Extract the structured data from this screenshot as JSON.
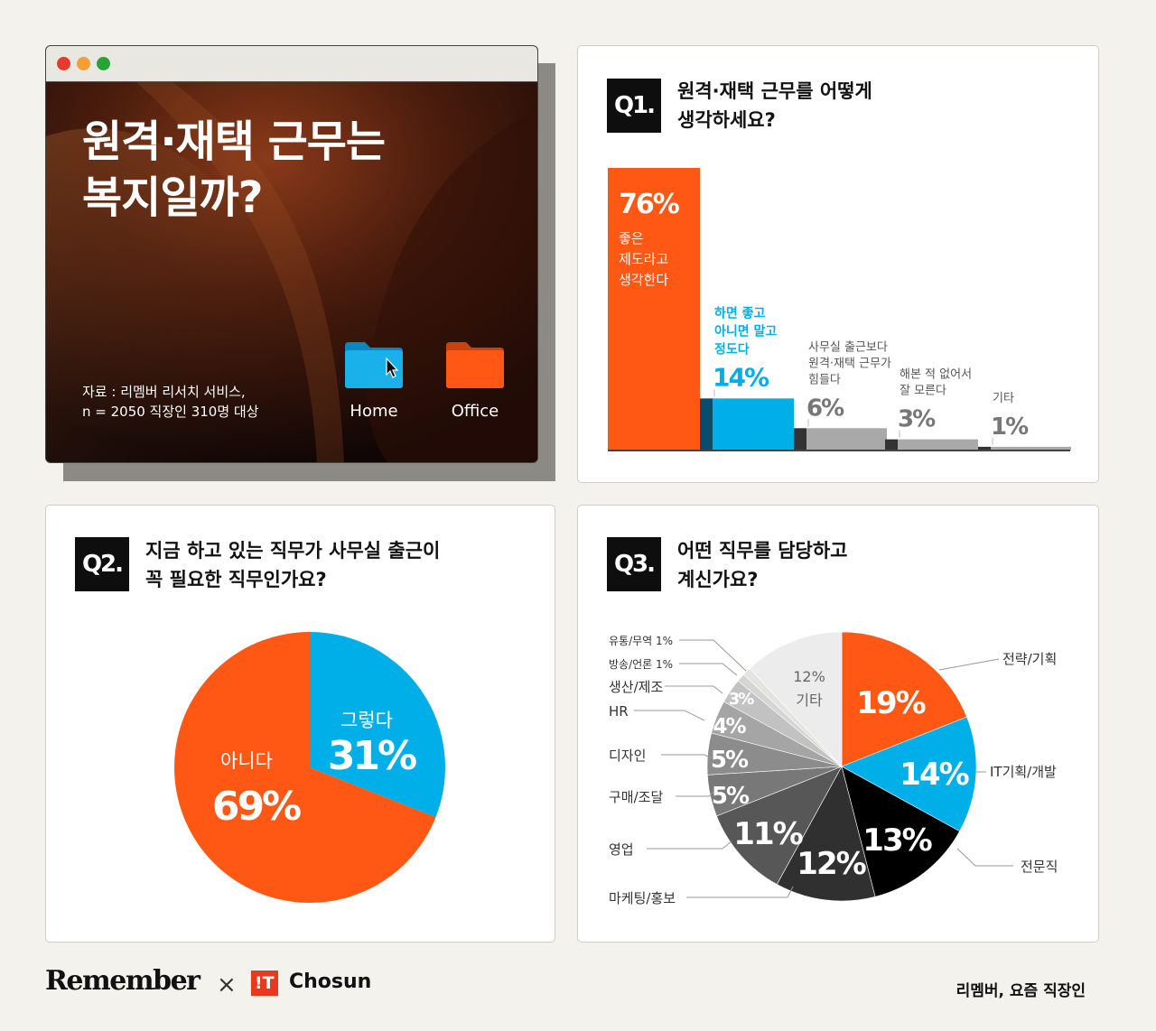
{
  "colors": {
    "orange": "#ff5714",
    "blue": "#00aee8",
    "black": "#0e0e0e",
    "grey": "#a9a9a9"
  },
  "window": {
    "title_line1": "원격·재택 근무는",
    "title_line2": "복지일까?",
    "source_line1": "자료 : 리멤버 리서치 서비스,",
    "source_line2": "n = 2050 직장인 310명 대상",
    "folders": [
      {
        "label": "Home",
        "icon": "folder-icon"
      },
      {
        "label": "Office",
        "icon": "folder-icon"
      }
    ]
  },
  "q1": {
    "badge": "Q1.",
    "title_line1": "원격·재택 근무를 어떻게",
    "title_line2": "생각하세요?"
  },
  "q2": {
    "badge": "Q2.",
    "title_line1": "지금 하고 있는 직무가 사무실 출근이",
    "title_line2": "꼭 필요한 직무인가요?"
  },
  "q3": {
    "badge": "Q3.",
    "title_line1": "어떤 직무를 담당하고",
    "title_line2": "계신가요?"
  },
  "footer": {
    "brand": "Remember",
    "times": "×",
    "it_badge": "!T",
    "partner": "Chosun",
    "right_text": "리멤버, 요즘 직장인"
  },
  "chart_data": [
    {
      "type": "bar",
      "unit": "%",
      "categories": [
        [
          "좋은",
          "제도라고",
          "생각한다"
        ],
        [
          "하면 좋고",
          "아니면 말고",
          "정도다"
        ],
        [
          "사무실 출근보다",
          "원격·재택 근무가",
          "힘들다"
        ],
        [
          "해본 적 없어서",
          "잘 모른다"
        ],
        [
          "기타"
        ]
      ],
      "values": [
        76,
        14,
        6,
        3,
        1
      ],
      "value_labels": [
        "76%",
        "14%",
        "6%",
        "3%",
        "1%"
      ],
      "colors": [
        "#ff5714",
        "#00aee8",
        "#a9a9a9",
        "#a9a9a9",
        "#a9a9a9"
      ]
    },
    {
      "type": "pie",
      "slices": [
        {
          "label": "그렇다",
          "value": 31,
          "value_label": "31%",
          "color": "#00aee8"
        },
        {
          "label": "아니다",
          "value": 69,
          "value_label": "69%",
          "color": "#ff5714"
        }
      ]
    },
    {
      "type": "pie",
      "slices": [
        {
          "label": "전략/기획",
          "value": 19,
          "value_label": "19%",
          "color": "#ff5714"
        },
        {
          "label": "IT기획/개발",
          "value": 14,
          "value_label": "14%",
          "color": "#00aee8"
        },
        {
          "label": "전문직",
          "value": 13,
          "value_label": "13%",
          "color": "#000000"
        },
        {
          "label": "마케팅/홍보",
          "value": 12,
          "value_label": "12%",
          "color": "#303030"
        },
        {
          "label": "영업",
          "value": 11,
          "value_label": "11%",
          "color": "#575757"
        },
        {
          "label": "구매/조달",
          "value": 5,
          "value_label": "5%",
          "color": "#787878"
        },
        {
          "label": "디자인",
          "value": 5,
          "value_label": "5%",
          "color": "#8c8c8c"
        },
        {
          "label": "HR",
          "value": 4,
          "value_label": "4%",
          "color": "#a5a5a5"
        },
        {
          "label": "생산/제조",
          "value": 3,
          "value_label": "3%",
          "color": "#c2c2c2"
        },
        {
          "label": "방송/언론 1%",
          "value": 1,
          "value_label": "",
          "color": "#d5d5d5"
        },
        {
          "label": "유통/무역 1%",
          "value": 1,
          "value_label": "",
          "color": "#e4e4de"
        },
        {
          "label": "기타",
          "value": 12,
          "value_label": "12%",
          "color": "#ececec"
        }
      ]
    }
  ]
}
